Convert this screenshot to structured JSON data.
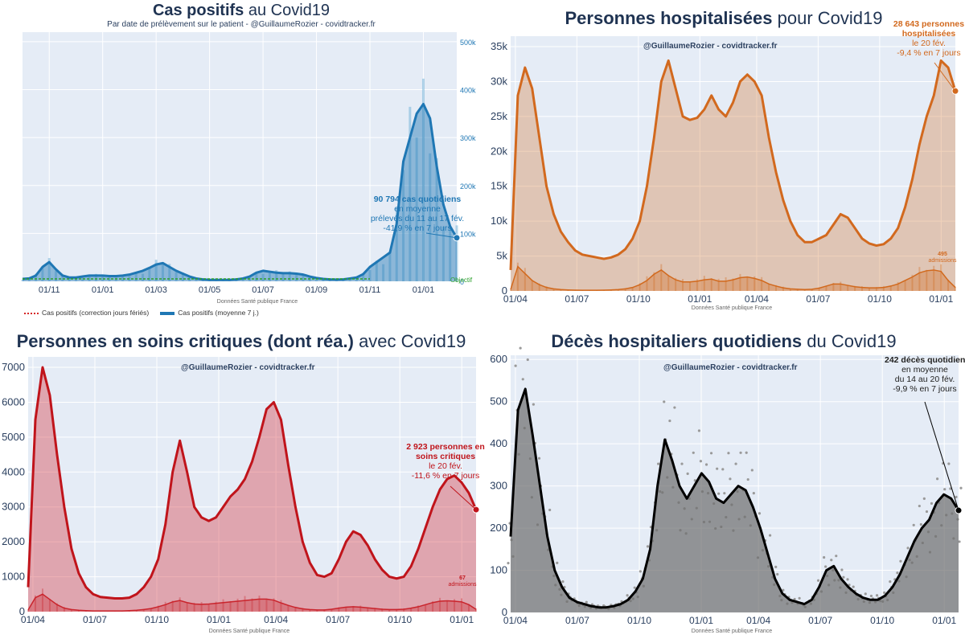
{
  "panels": {
    "cases": {
      "title_bold": "Cas positifs",
      "title_rest": " au Covid19",
      "subtitle": "Par date de prélèvement sur le patient - @GuillaumeRozier - covidtracker.fr",
      "source": "Données Santé publique France",
      "objective_label": "Objectif",
      "annotation": {
        "bold": "90 794 cas quotidiens",
        "lines": [
          "en moyenne",
          "prélevés du 11 au 17 fév.",
          "-41,9 % en 7 jours"
        ]
      },
      "legend": [
        "Cas positifs (correction jours fériés)",
        "Cas positifs (moyenne 7 j.)"
      ],
      "color": "#1f77b4"
    },
    "hosp": {
      "title_bold": "Personnes hospitalisées",
      "title_rest": " pour Covid19",
      "credit": "@GuillaumeRozier - covidtracker.fr",
      "source": "Données Santé publique France",
      "annotation": {
        "bold": "28 643 personnes hospitalisées",
        "lines": [
          "le 20 fév.",
          "-9,4 % en 7 jours"
        ]
      },
      "admissions_value": "495",
      "admissions_label": "admissions",
      "color": "#d2691e"
    },
    "icu": {
      "title_bold": "Personnes en soins critiques (dont réa.)",
      "title_rest": " avec Covid19",
      "credit": "@GuillaumeRozier - covidtracker.fr",
      "source": "Données Santé publique France",
      "annotation": {
        "bold": "2 923 personnes en soins critiques",
        "lines": [
          "le 20 fév.",
          "-11,6 % en 7 jours"
        ]
      },
      "admissions_value": "67",
      "admissions_label": "admissions",
      "color": "#c0141b"
    },
    "deaths": {
      "title_bold": "Décès hospitaliers quotidiens",
      "title_rest": " du Covid19",
      "credit": "@GuillaumeRozier - covidtracker.fr",
      "source": "Données Santé publique France",
      "annotation": {
        "bold": "242 décès quotidiens",
        "lines": [
          "en moyenne",
          "du 14 au 20 fév.",
          "-9,9 % en 7 jours"
        ]
      },
      "color": "#000000"
    }
  },
  "chart_data": [
    {
      "id": "cases",
      "type": "area",
      "title": "Cas positifs au Covid19",
      "x_tick_labels": [
        "01/11",
        "01/01",
        "01/03",
        "01/05",
        "01/07",
        "01/09",
        "01/11",
        "01/01"
      ],
      "x_tick_index": [
        4,
        12,
        20,
        28,
        36,
        44,
        52,
        60
      ],
      "y_ticks": [
        0,
        100000,
        200000,
        300000,
        400000,
        500000
      ],
      "y_tick_labels": [
        "0",
        "100k",
        "200k",
        "300k",
        "400k",
        "500k"
      ],
      "ylim": [
        0,
        520000
      ],
      "y_axis_side": "right",
      "series": [
        {
          "name": "Cas positifs (moyenne 7 j.)",
          "values": [
            5000,
            6000,
            12000,
            30000,
            40000,
            25000,
            12000,
            8000,
            8000,
            10000,
            12000,
            12000,
            12000,
            11000,
            11000,
            12000,
            14000,
            18000,
            22000,
            28000,
            35000,
            38000,
            30000,
            22000,
            16000,
            10000,
            6000,
            4000,
            3000,
            3000,
            3000,
            3000,
            4000,
            6000,
            10000,
            18000,
            22000,
            20000,
            18000,
            17000,
            17000,
            16000,
            14000,
            10000,
            7000,
            5000,
            4000,
            3500,
            4000,
            6000,
            8000,
            15000,
            30000,
            40000,
            50000,
            60000,
            120000,
            250000,
            300000,
            350000,
            370000,
            340000,
            240000,
            160000,
            115000,
            90794
          ]
        }
      ],
      "objective": 5000
    },
    {
      "id": "hosp",
      "type": "area",
      "title": "Personnes hospitalisées pour Covid19",
      "x_tick_labels": [
        "01/04",
        "01/07",
        "01/10",
        "01/01",
        "01/04",
        "01/07",
        "01/10",
        "01/01"
      ],
      "x_tick_index": [
        1,
        14,
        27,
        40,
        52,
        65,
        78,
        91
      ],
      "y_ticks": [
        0,
        5000,
        10000,
        15000,
        20000,
        25000,
        30000,
        35000
      ],
      "y_tick_labels": [
        "0",
        "5k",
        "10k",
        "15k",
        "20k",
        "25k",
        "30k",
        "35k"
      ],
      "ylim": [
        0,
        36500
      ],
      "y_axis_side": "left",
      "series": [
        {
          "name": "Hospitalisés",
          "values": [
            3000,
            28000,
            32000,
            29000,
            22000,
            15000,
            11000,
            8500,
            7000,
            5800,
            5200,
            5000,
            4800,
            4600,
            4800,
            5200,
            6000,
            7500,
            10000,
            15000,
            22000,
            30000,
            33000,
            29000,
            25000,
            24500,
            24800,
            26000,
            28000,
            26000,
            25000,
            27000,
            30000,
            31000,
            30000,
            28000,
            22000,
            17000,
            13000,
            10000,
            8000,
            7000,
            7000,
            7500,
            8000,
            9500,
            11000,
            10500,
            9000,
            7500,
            6800,
            6500,
            6700,
            7500,
            9000,
            12000,
            16000,
            21000,
            25000,
            28000,
            33000,
            32000,
            28643
          ]
        },
        {
          "name": "Admissions",
          "values": [
            200,
            3500,
            2500,
            1500,
            900,
            500,
            300,
            200,
            150,
            120,
            100,
            100,
            100,
            120,
            150,
            200,
            300,
            500,
            900,
            1500,
            2400,
            3000,
            2200,
            1600,
            1300,
            1300,
            1400,
            1600,
            1700,
            1400,
            1400,
            1600,
            1900,
            2000,
            1800,
            1500,
            1000,
            700,
            450,
            300,
            250,
            200,
            250,
            400,
            700,
            1000,
            1000,
            800,
            600,
            500,
            450,
            450,
            500,
            700,
            1000,
            1500,
            2000,
            2600,
            2900,
            3000,
            2800,
            1500,
            495
          ]
        }
      ]
    },
    {
      "id": "icu",
      "type": "area",
      "title": "Personnes en soins critiques (dont réa.) avec Covid19",
      "x_tick_labels": [
        "01/04",
        "01/07",
        "01/10",
        "01/01",
        "01/04",
        "01/07",
        "01/10",
        "01/01"
      ],
      "x_tick_index": [
        1,
        14,
        27,
        40,
        52,
        65,
        78,
        91
      ],
      "y_ticks": [
        0,
        1000,
        2000,
        3000,
        4000,
        5000,
        6000,
        7000
      ],
      "y_tick_labels": [
        "0",
        "1000",
        "2000",
        "3000",
        "4000",
        "5000",
        "6000",
        "7000"
      ],
      "ylim": [
        0,
        7300
      ],
      "y_axis_side": "left",
      "series": [
        {
          "name": "Soins critiques",
          "values": [
            700,
            5500,
            7000,
            6200,
            4500,
            3000,
            1800,
            1100,
            700,
            500,
            420,
            400,
            380,
            380,
            400,
            500,
            700,
            1000,
            1500,
            2500,
            4000,
            4900,
            4000,
            3000,
            2700,
            2600,
            2700,
            3000,
            3300,
            3500,
            3800,
            4300,
            5000,
            5800,
            6000,
            5500,
            4200,
            3000,
            2000,
            1400,
            1050,
            1000,
            1100,
            1500,
            2000,
            2300,
            2200,
            1900,
            1500,
            1200,
            1000,
            950,
            1000,
            1300,
            1800,
            2400,
            3000,
            3500,
            3800,
            3900,
            3700,
            3400,
            2923
          ]
        },
        {
          "name": "Admissions",
          "values": [
            50,
            400,
            500,
            350,
            200,
            100,
            60,
            40,
            30,
            20,
            20,
            20,
            20,
            20,
            30,
            40,
            60,
            90,
            140,
            200,
            280,
            320,
            260,
            220,
            210,
            220,
            240,
            260,
            280,
            300,
            320,
            340,
            360,
            360,
            330,
            250,
            180,
            120,
            80,
            60,
            50,
            50,
            70,
            100,
            130,
            140,
            130,
            110,
            90,
            70,
            60,
            60,
            70,
            100,
            140,
            200,
            260,
            300,
            310,
            300,
            280,
            200,
            67
          ]
        }
      ]
    },
    {
      "id": "deaths",
      "type": "area",
      "title": "Décès hospitaliers quotidiens du Covid19",
      "x_tick_labels": [
        "01/04",
        "01/07",
        "01/10",
        "01/01",
        "01/04",
        "01/07",
        "01/10",
        "01/01"
      ],
      "x_tick_index": [
        1,
        14,
        27,
        40,
        52,
        65,
        78,
        91
      ],
      "y_ticks": [
        0,
        100,
        200,
        300,
        400,
        500,
        600
      ],
      "y_tick_labels": [
        "0",
        "100",
        "200",
        "300",
        "400",
        "500",
        "600"
      ],
      "ylim": [
        0,
        610
      ],
      "y_axis_side": "left",
      "series": [
        {
          "name": "Décès (moyenne 7 j.)",
          "values": [
            180,
            480,
            530,
            420,
            300,
            180,
            100,
            60,
            35,
            25,
            20,
            15,
            12,
            12,
            15,
            20,
            30,
            50,
            80,
            150,
            300,
            410,
            360,
            300,
            270,
            300,
            330,
            310,
            270,
            260,
            280,
            300,
            290,
            250,
            200,
            140,
            80,
            45,
            30,
            25,
            20,
            30,
            60,
            100,
            110,
            80,
            60,
            45,
            35,
            30,
            30,
            40,
            60,
            90,
            130,
            170,
            200,
            220,
            260,
            280,
            270,
            242
          ]
        }
      ]
    }
  ]
}
